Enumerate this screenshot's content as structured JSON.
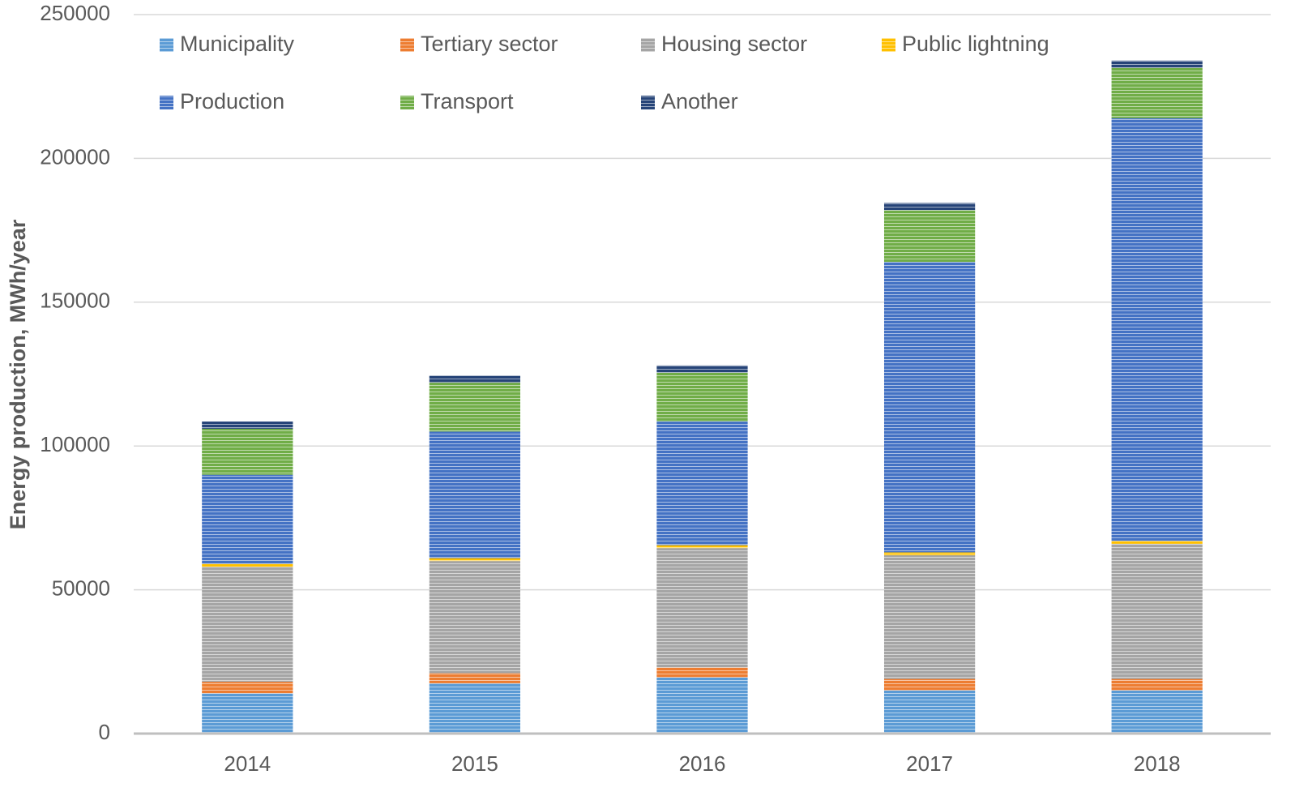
{
  "chart_data": {
    "type": "stacked_bar",
    "y_label": "Energy production, MWh/year",
    "categories": [
      "2014",
      "2015",
      "2016",
      "2017",
      "2018"
    ],
    "series": [
      {
        "name": "Municipality",
        "color": "#5b9bd5",
        "values": [
          14000,
          17500,
          19500,
          15000,
          15000
        ]
      },
      {
        "name": "Tertiary sector",
        "color": "#ed7d31",
        "values": [
          4000,
          3500,
          3500,
          4000,
          4000
        ]
      },
      {
        "name": "Housing sector",
        "color": "#a5a5a5",
        "values": [
          40000,
          39000,
          41500,
          43000,
          47000
        ]
      },
      {
        "name": "Public lightning",
        "color": "#ffc000",
        "values": [
          1000,
          1000,
          1000,
          1000,
          1000
        ]
      },
      {
        "name": "Production",
        "color": "#4472c4",
        "values": [
          31000,
          44000,
          43000,
          101000,
          147000
        ]
      },
      {
        "name": "Transport",
        "color": "#70ad47",
        "values": [
          16000,
          17000,
          17000,
          18000,
          17500
        ]
      },
      {
        "name": "Another",
        "color": "#264478",
        "values": [
          2500,
          2500,
          2500,
          2500,
          2500
        ]
      }
    ],
    "ylim": [
      0,
      250000
    ],
    "yticks": [
      0,
      50000,
      100000,
      150000,
      200000,
      250000
    ],
    "grid": true
  }
}
